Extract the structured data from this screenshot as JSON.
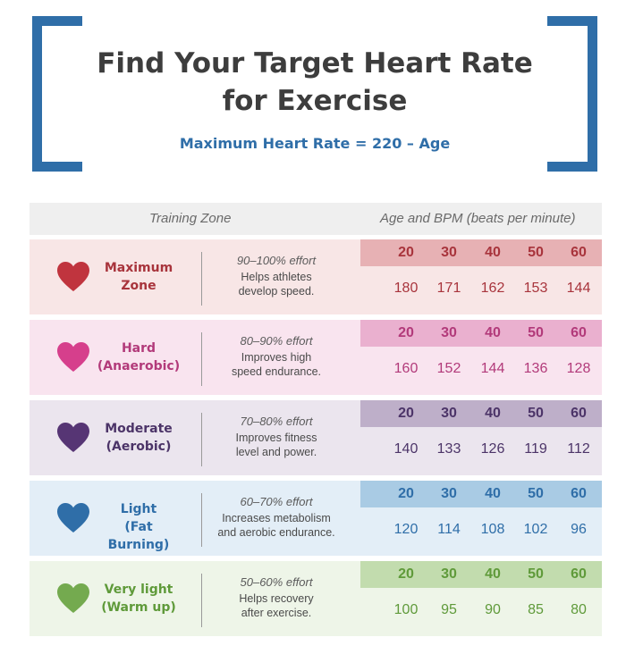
{
  "header": {
    "title_line1": "Find Your Target Heart Rate",
    "title_line2": "for Exercise",
    "formula": "Maximum Heart Rate = 220 – Age"
  },
  "columns": {
    "zone": "Training Zone",
    "age": "Age and BPM (beats per minute)"
  },
  "zones": [
    {
      "name_line1": "Maximum",
      "name_line2": "Zone",
      "effort": "90–100% effort",
      "desc_line1": "Helps athletes",
      "desc_line2": "develop speed.",
      "ages": [
        "20",
        "30",
        "40",
        "50",
        "60"
      ],
      "bpm": [
        "180",
        "171",
        "162",
        "153",
        "144"
      ],
      "colors": {
        "heart": "#c0343e",
        "name": "#a8343c",
        "bg": "#f8e6e6",
        "band": "#e7b1b4",
        "age": "#a8343c",
        "bpm": "#a8343c"
      }
    },
    {
      "name_line1": "Hard",
      "name_line2": "(Anaerobic)",
      "effort": "80–90% effort",
      "desc_line1": "Improves high",
      "desc_line2": "speed endurance.",
      "ages": [
        "20",
        "30",
        "40",
        "50",
        "60"
      ],
      "bpm": [
        "160",
        "152",
        "144",
        "136",
        "128"
      ],
      "colors": {
        "heart": "#d63f8c",
        "name": "#b23a7a",
        "bg": "#f9e4ef",
        "band": "#eab0cf",
        "age": "#b23a7a",
        "bpm": "#b23a7a"
      }
    },
    {
      "name_line1": "Moderate",
      "name_line2": "(Aerobic)",
      "effort": "70–80% effort",
      "desc_line1": "Improves fitness",
      "desc_line2": "level and power.",
      "ages": [
        "20",
        "30",
        "40",
        "50",
        "60"
      ],
      "bpm": [
        "140",
        "133",
        "126",
        "119",
        "112"
      ],
      "colors": {
        "heart": "#563574",
        "name": "#4c3468",
        "bg": "#ebe5ee",
        "band": "#beafc9",
        "age": "#4c3468",
        "bpm": "#4c3468"
      }
    },
    {
      "name_line1": "Light",
      "name_line2": "(Fat Burning)",
      "effort": "60–70% effort",
      "desc_line1": "Increases metabolism",
      "desc_line2": "and aerobic endurance.",
      "ages": [
        "20",
        "30",
        "40",
        "50",
        "60"
      ],
      "bpm": [
        "120",
        "114",
        "108",
        "102",
        "96"
      ],
      "colors": {
        "heart": "#2f6ea8",
        "name": "#2f6ea8",
        "bg": "#e3eef7",
        "band": "#a9cbe4",
        "age": "#2f6ea8",
        "bpm": "#2f6ea8"
      }
    },
    {
      "name_line1": "Very light",
      "name_line2": "(Warm up)",
      "effort": "50–60% effort",
      "desc_line1": "Helps recovery",
      "desc_line2": "after exercise.",
      "ages": [
        "20",
        "30",
        "40",
        "50",
        "60"
      ],
      "bpm": [
        "100",
        "95",
        "90",
        "85",
        "80"
      ],
      "colors": {
        "heart": "#74aa4f",
        "name": "#5f9a3a",
        "bg": "#eef5e8",
        "band": "#c2dcae",
        "age": "#5f9a3a",
        "bpm": "#5f9a3a"
      }
    }
  ]
}
